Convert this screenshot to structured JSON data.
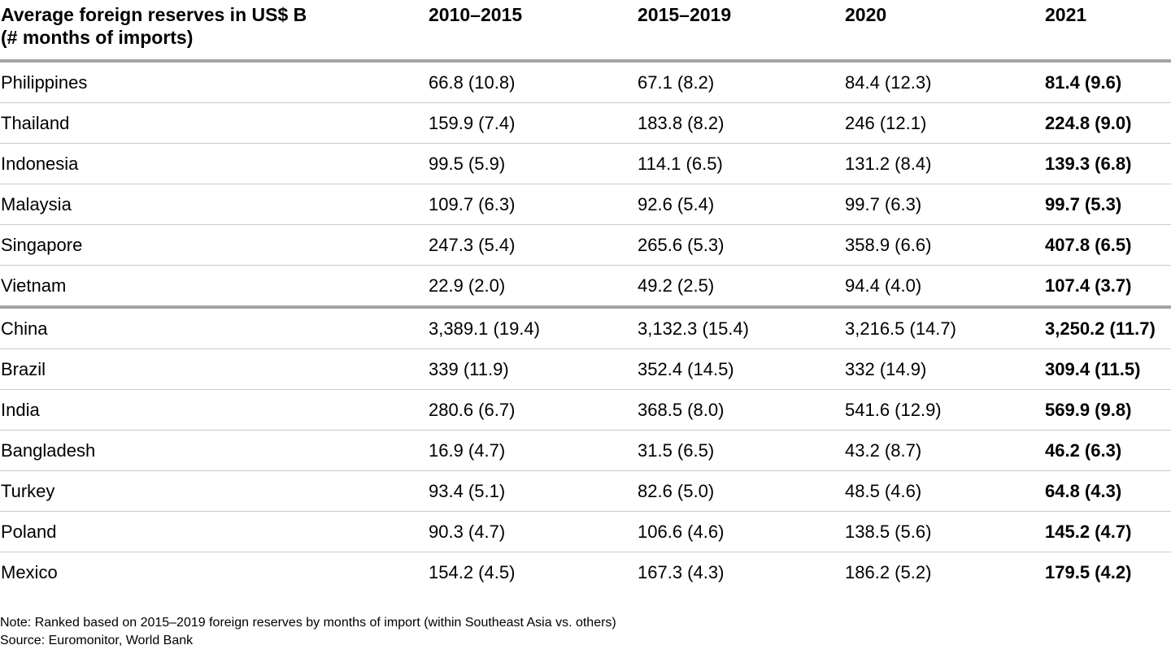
{
  "table": {
    "header": {
      "title_line1": "Average foreign reserves in US$ B",
      "title_line2": "(# months of imports)",
      "columns": [
        "2010–2015",
        "2015–2019",
        "2020",
        "2021"
      ]
    },
    "groups": [
      {
        "name": "southeast-asia",
        "rows": [
          {
            "country": "Philippines",
            "values": [
              "66.8 (10.8)",
              "67.1 (8.2)",
              "84.4 (12.3)",
              "81.4 (9.6)"
            ]
          },
          {
            "country": "Thailand",
            "values": [
              "159.9 (7.4)",
              "183.8 (8.2)",
              "246 (12.1)",
              "224.8 (9.0)"
            ]
          },
          {
            "country": "Indonesia",
            "values": [
              "99.5 (5.9)",
              "114.1 (6.5)",
              "131.2 (8.4)",
              "139.3 (6.8)"
            ]
          },
          {
            "country": "Malaysia",
            "values": [
              "109.7 (6.3)",
              "92.6 (5.4)",
              "99.7 (6.3)",
              "99.7 (5.3)"
            ]
          },
          {
            "country": "Singapore",
            "values": [
              "247.3 (5.4)",
              "265.6 (5.3)",
              "358.9 (6.6)",
              "407.8 (6.5)"
            ]
          },
          {
            "country": "Vietnam",
            "values": [
              "22.9 (2.0)",
              "49.2 (2.5)",
              "94.4 (4.0)",
              "107.4 (3.7)"
            ]
          }
        ]
      },
      {
        "name": "others",
        "rows": [
          {
            "country": "China",
            "values": [
              "3,389.1 (19.4)",
              "3,132.3 (15.4)",
              "3,216.5 (14.7)",
              "3,250.2 (11.7)"
            ]
          },
          {
            "country": "Brazil",
            "values": [
              "339 (11.9)",
              "352.4 (14.5)",
              "332 (14.9)",
              "309.4 (11.5)"
            ]
          },
          {
            "country": "India",
            "values": [
              "280.6 (6.7)",
              "368.5 (8.0)",
              "541.6 (12.9)",
              "569.9 (9.8)"
            ]
          },
          {
            "country": "Bangladesh",
            "values": [
              "16.9 (4.7)",
              "31.5 (6.5)",
              "43.2 (8.7)",
              "46.2 (6.3)"
            ]
          },
          {
            "country": "Turkey",
            "values": [
              "93.4 (5.1)",
              "82.6 (5.0)",
              "48.5 (4.6)",
              "64.8 (4.3)"
            ]
          },
          {
            "country": "Poland",
            "values": [
              "90.3 (4.7)",
              "106.6 (4.6)",
              "138.5 (5.6)",
              "145.2 (4.7)"
            ]
          },
          {
            "country": "Mexico",
            "values": [
              "154.2 (4.5)",
              "167.3 (4.3)",
              "186.2 (5.2)",
              "179.5 (4.2)"
            ]
          }
        ]
      }
    ],
    "note": "Note: Ranked based on 2015–2019 foreign reserves by months of import (within Southeast Asia vs. others)",
    "source": "Source: Euromonitor, World Bank"
  },
  "colors": {
    "background": "#ffffff",
    "text": "#000000",
    "divider_heavy": "#a3a3a3",
    "divider_light": "#cbcbcb"
  },
  "chart_data": {
    "type": "table",
    "title": "Average foreign reserves in US$ B (# months of imports)",
    "columns": [
      "2010–2015",
      "2015–2019",
      "2020",
      "2021"
    ],
    "row_groups": [
      [
        "Philippines",
        "Thailand",
        "Indonesia",
        "Malaysia",
        "Singapore",
        "Vietnam"
      ],
      [
        "China",
        "Brazil",
        "India",
        "Bangladesh",
        "Turkey",
        "Poland",
        "Mexico"
      ]
    ],
    "reserves_usd_b": {
      "Philippines": [
        66.8,
        67.1,
        84.4,
        81.4
      ],
      "Thailand": [
        159.9,
        183.8,
        246,
        224.8
      ],
      "Indonesia": [
        99.5,
        114.1,
        131.2,
        139.3
      ],
      "Malaysia": [
        109.7,
        92.6,
        99.7,
        99.7
      ],
      "Singapore": [
        247.3,
        265.6,
        358.9,
        407.8
      ],
      "Vietnam": [
        22.9,
        49.2,
        94.4,
        107.4
      ],
      "China": [
        3389.1,
        3132.3,
        3216.5,
        3250.2
      ],
      "Brazil": [
        339,
        352.4,
        332,
        309.4
      ],
      "India": [
        280.6,
        368.5,
        541.6,
        569.9
      ],
      "Bangladesh": [
        16.9,
        31.5,
        43.2,
        46.2
      ],
      "Turkey": [
        93.4,
        82.6,
        48.5,
        64.8
      ],
      "Poland": [
        90.3,
        106.6,
        138.5,
        145.2
      ],
      "Mexico": [
        154.2,
        167.3,
        186.2,
        179.5
      ]
    },
    "months_of_imports": {
      "Philippines": [
        10.8,
        8.2,
        12.3,
        9.6
      ],
      "Thailand": [
        7.4,
        8.2,
        12.1,
        9.0
      ],
      "Indonesia": [
        5.9,
        6.5,
        8.4,
        6.8
      ],
      "Malaysia": [
        6.3,
        5.4,
        6.3,
        5.3
      ],
      "Singapore": [
        5.4,
        5.3,
        6.6,
        6.5
      ],
      "Vietnam": [
        2.0,
        2.5,
        4.0,
        3.7
      ],
      "China": [
        19.4,
        15.4,
        14.7,
        11.7
      ],
      "Brazil": [
        11.9,
        14.5,
        14.9,
        11.5
      ],
      "India": [
        6.7,
        8.0,
        12.9,
        9.8
      ],
      "Bangladesh": [
        4.7,
        6.5,
        8.7,
        6.3
      ],
      "Turkey": [
        5.1,
        5.0,
        4.6,
        4.3
      ],
      "Poland": [
        4.7,
        4.6,
        5.6,
        4.7
      ],
      "Mexico": [
        4.5,
        4.3,
        5.2,
        4.2
      ]
    },
    "note": "Note: Ranked based on 2015–2019 foreign reserves by months of import (within Southeast Asia vs. others)",
    "source": "Source: Euromonitor, World Bank"
  }
}
